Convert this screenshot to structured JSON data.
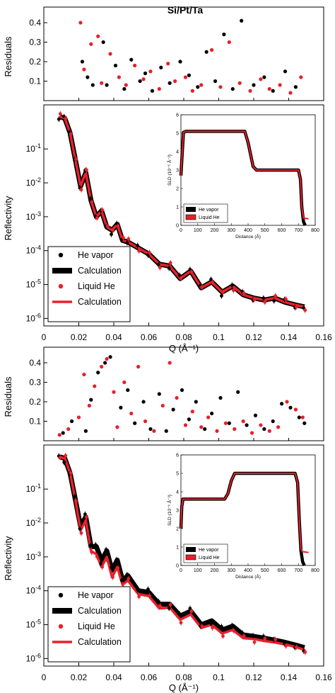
{
  "title": "Si/Pt/Ta",
  "colors": {
    "vapor": "#000000",
    "liquid": "#e8202a"
  },
  "x_tick_labels": [
    "0",
    "0.02",
    "0.04",
    "0.06",
    "0.08",
    "0.1",
    "0.12",
    "0.14",
    "0.16"
  ],
  "x_axis_label": "Q (Å⁻¹)",
  "residuals_label": "Residuals",
  "reflectivity_label": "Reflectivity",
  "residual_tick_labels": [
    "0.1",
    "0.2",
    "0.3",
    "0.4"
  ],
  "reflectivity_tick_labels": [
    "10-1",
    "10-2",
    "10-3",
    "10-4",
    "10-5",
    "10-6"
  ],
  "legend": [
    "He vapor",
    "Calculation",
    "Liquid He",
    "Calculation"
  ],
  "inset": {
    "ylabel": "SLD (10⁻⁶ Å⁻²)",
    "xlabel": "Distance (Å)",
    "y_tick_labels": [
      "0",
      "1",
      "2",
      "3",
      "4",
      "5",
      "6"
    ],
    "x_tick_labels": [
      "0",
      "100",
      "200",
      "300",
      "400",
      "500",
      "600",
      "700",
      "800"
    ],
    "legend": [
      "He vapor",
      "Liquid He"
    ]
  },
  "chart_data": [
    {
      "type": "scatter",
      "panel": "top-residuals",
      "ylabel": "Residuals",
      "xlim": [
        0,
        0.16
      ],
      "ylim": [
        0,
        0.48
      ],
      "series": [
        {
          "name": "He vapor",
          "x": [
            0.022,
            0.025,
            0.028,
            0.034,
            0.036,
            0.041,
            0.046,
            0.05,
            0.055,
            0.058,
            0.062,
            0.067,
            0.072,
            0.078,
            0.083,
            0.088,
            0.093,
            0.098,
            0.103,
            0.108,
            0.113,
            0.12,
            0.126,
            0.131,
            0.138,
            0.144
          ],
          "y": [
            0.2,
            0.12,
            0.08,
            0.3,
            0.08,
            0.18,
            0.06,
            0.21,
            0.1,
            0.14,
            0.05,
            0.17,
            0.09,
            0.2,
            0.13,
            0.07,
            0.25,
            0.1,
            0.34,
            0.06,
            0.41,
            0.08,
            0.12,
            0.05,
            0.15,
            0.07
          ]
        },
        {
          "name": "Liquid He",
          "x": [
            0.021,
            0.023,
            0.027,
            0.031,
            0.033,
            0.038,
            0.043,
            0.047,
            0.052,
            0.057,
            0.061,
            0.066,
            0.071,
            0.075,
            0.081,
            0.085,
            0.09,
            0.096,
            0.101,
            0.106,
            0.112,
            0.118,
            0.124,
            0.129,
            0.135,
            0.141,
            0.147
          ],
          "y": [
            0.4,
            0.16,
            0.29,
            0.33,
            0.09,
            0.24,
            0.12,
            0.08,
            0.18,
            0.11,
            0.15,
            0.06,
            0.19,
            0.1,
            0.12,
            0.05,
            0.08,
            0.26,
            0.07,
            0.3,
            0.09,
            0.05,
            0.11,
            0.06,
            0.08,
            0.04,
            0.12
          ]
        }
      ]
    },
    {
      "type": "line",
      "panel": "top-reflectivity",
      "ylabel": "Reflectivity",
      "xlabel": "Q (Å⁻¹)",
      "xlim": [
        0,
        0.16
      ],
      "yscale": "log",
      "ylim": [
        6e-07,
        2
      ],
      "series": [
        {
          "name": "He vapor",
          "x": [
            0.009,
            0.012,
            0.015,
            0.018,
            0.021,
            0.024,
            0.027,
            0.03,
            0.033,
            0.036,
            0.039,
            0.042,
            0.045,
            0.048,
            0.054,
            0.06,
            0.066,
            0.072,
            0.078,
            0.084,
            0.09,
            0.096,
            0.102,
            0.108,
            0.114,
            0.12,
            0.126,
            0.132,
            0.138,
            0.144,
            0.149
          ],
          "y": [
            0.9,
            0.8,
            0.3,
            0.05,
            0.008,
            0.02,
            0.003,
            0.001,
            0.0015,
            0.0005,
            0.0004,
            0.0006,
            0.0002,
            0.00018,
            0.00012,
            8e-05,
            4e-05,
            3.5e-05,
            1.5e-05,
            2.5e-05,
            8e-06,
            1.2e-05,
            6e-06,
            9e-06,
            5e-06,
            4e-06,
            3.5e-06,
            4e-06,
            3e-06,
            2.5e-06,
            2.2e-06
          ]
        },
        {
          "name": "Liquid He",
          "x": [
            0.009,
            0.012,
            0.015,
            0.018,
            0.021,
            0.024,
            0.027,
            0.03,
            0.033,
            0.036,
            0.039,
            0.042,
            0.045,
            0.048,
            0.054,
            0.06,
            0.066,
            0.072,
            0.078,
            0.084,
            0.09,
            0.096,
            0.102,
            0.108,
            0.114,
            0.12,
            0.126,
            0.132,
            0.138,
            0.144,
            0.149
          ],
          "y": [
            0.9,
            0.8,
            0.3,
            0.05,
            0.008,
            0.02,
            0.003,
            0.001,
            0.0015,
            0.0005,
            0.0004,
            0.0006,
            0.0002,
            0.00018,
            0.00012,
            8e-05,
            4e-05,
            3.5e-05,
            1.5e-05,
            2.5e-05,
            8e-06,
            1.2e-05,
            6e-06,
            9e-06,
            5e-06,
            4e-06,
            3.5e-06,
            4e-06,
            3e-06,
            2.5e-06,
            2.2e-06
          ]
        }
      ]
    },
    {
      "type": "line",
      "panel": "top-inset-sld",
      "xlabel": "Distance (Å)",
      "ylabel": "SLD (10⁻⁶ Å⁻²)",
      "xlim": [
        0,
        800
      ],
      "ylim": [
        0,
        6
      ],
      "series": [
        {
          "name": "He vapor",
          "x": [
            0,
            5,
            15,
            30,
            380,
            400,
            430,
            450,
            700,
            712,
            720,
            730,
            740
          ],
          "y": [
            2.7,
            3.5,
            5.05,
            5.1,
            5.1,
            4.5,
            3.2,
            3.0,
            3.0,
            2.5,
            1.0,
            0.2,
            0.0
          ]
        },
        {
          "name": "Liquid He",
          "x": [
            0,
            5,
            15,
            30,
            380,
            400,
            430,
            450,
            700,
            712,
            720,
            730,
            760
          ],
          "y": [
            2.7,
            3.5,
            5.05,
            5.1,
            5.1,
            4.5,
            3.2,
            3.0,
            3.0,
            2.5,
            1.0,
            0.4,
            0.35
          ]
        }
      ]
    },
    {
      "type": "scatter",
      "panel": "bottom-residuals",
      "ylabel": "Residuals",
      "xlim": [
        0,
        0.16
      ],
      "ylim": [
        0,
        0.48
      ],
      "series": [
        {
          "name": "He vapor",
          "x": [
            0.011,
            0.016,
            0.024,
            0.027,
            0.031,
            0.035,
            0.038,
            0.044,
            0.048,
            0.052,
            0.057,
            0.061,
            0.066,
            0.07,
            0.074,
            0.079,
            0.083,
            0.087,
            0.092,
            0.096,
            0.101,
            0.106,
            0.111,
            0.116,
            0.121,
            0.126,
            0.131,
            0.136,
            0.141,
            0.146,
            0.149
          ],
          "y": [
            0.04,
            0.1,
            0.05,
            0.21,
            0.35,
            0.4,
            0.43,
            0.17,
            0.26,
            0.09,
            0.2,
            0.06,
            0.24,
            0.05,
            0.16,
            0.26,
            0.11,
            0.2,
            0.06,
            0.14,
            0.22,
            0.09,
            0.25,
            0.08,
            0.13,
            0.06,
            0.1,
            0.19,
            0.17,
            0.12,
            0.09
          ]
        },
        {
          "name": "Liquid He",
          "x": [
            0.009,
            0.014,
            0.02,
            0.023,
            0.026,
            0.029,
            0.033,
            0.036,
            0.04,
            0.042,
            0.046,
            0.05,
            0.054,
            0.058,
            0.063,
            0.068,
            0.072,
            0.076,
            0.081,
            0.085,
            0.09,
            0.094,
            0.099,
            0.104,
            0.109,
            0.114,
            0.119,
            0.124,
            0.129,
            0.134,
            0.139,
            0.144,
            0.148
          ],
          "y": [
            0.03,
            0.06,
            0.12,
            0.34,
            0.18,
            0.28,
            0.38,
            0.42,
            0.25,
            0.07,
            0.3,
            0.14,
            0.38,
            0.1,
            0.05,
            0.18,
            0.4,
            0.22,
            0.08,
            0.15,
            0.07,
            0.12,
            0.05,
            0.09,
            0.06,
            0.1,
            0.04,
            0.08,
            0.05,
            0.07,
            0.2,
            0.16,
            0.12
          ]
        }
      ]
    },
    {
      "type": "line",
      "panel": "bottom-reflectivity",
      "ylabel": "Reflectivity",
      "xlabel": "Q (Å⁻¹)",
      "xlim": [
        0,
        0.16
      ],
      "yscale": "log",
      "ylim": [
        6e-07,
        2
      ],
      "series": [
        {
          "name": "He vapor",
          "x": [
            0.009,
            0.012,
            0.015,
            0.018,
            0.021,
            0.024,
            0.027,
            0.03,
            0.033,
            0.036,
            0.039,
            0.042,
            0.045,
            0.048,
            0.054,
            0.06,
            0.066,
            0.072,
            0.078,
            0.084,
            0.09,
            0.096,
            0.102,
            0.108,
            0.114,
            0.12,
            0.126,
            0.132,
            0.138,
            0.144,
            0.149
          ],
          "y": [
            0.9,
            0.8,
            0.3,
            0.05,
            0.008,
            0.015,
            0.002,
            0.002,
            0.0008,
            0.0015,
            0.0004,
            0.0008,
            0.0002,
            0.00028,
            0.0001,
            9e-05,
            4e-05,
            4e-05,
            1.8e-05,
            2.5e-05,
            1e-05,
            1.3e-05,
            7e-06,
            9e-06,
            5e-06,
            4.5e-06,
            4e-06,
            3.5e-06,
            3e-06,
            2.5e-06,
            2.1e-06
          ]
        },
        {
          "name": "Liquid He",
          "x": [
            0.009,
            0.012,
            0.015,
            0.018,
            0.021,
            0.024,
            0.027,
            0.03,
            0.033,
            0.036,
            0.039,
            0.042,
            0.045,
            0.048,
            0.054,
            0.06,
            0.066,
            0.072,
            0.078,
            0.084,
            0.09,
            0.096,
            0.102,
            0.108,
            0.114,
            0.12,
            0.126,
            0.132,
            0.138,
            0.144,
            0.149
          ],
          "y": [
            0.9,
            0.8,
            0.3,
            0.05,
            0.006,
            0.012,
            0.0015,
            0.0012,
            0.0005,
            0.001,
            0.00025,
            0.0005,
            0.00015,
            0.0002,
            8e-05,
            7e-05,
            3e-05,
            3.2e-05,
            1.4e-05,
            2e-05,
            8e-06,
            1e-05,
            5.5e-06,
            7e-06,
            4e-06,
            3.8e-06,
            3.3e-06,
            3e-06,
            2.6e-06,
            2.2e-06,
            1.8e-06
          ]
        }
      ]
    },
    {
      "type": "line",
      "panel": "bottom-inset-sld",
      "xlabel": "Distance (Å)",
      "ylabel": "SLD (10⁻⁶ Å⁻²)",
      "xlim": [
        0,
        800
      ],
      "ylim": [
        0,
        6
      ],
      "series": [
        {
          "name": "He vapor",
          "x": [
            0,
            5,
            12,
            260,
            280,
            300,
            320,
            680,
            695,
            705,
            715,
            725,
            735
          ],
          "y": [
            2.0,
            3.2,
            3.6,
            3.6,
            3.9,
            4.6,
            5.0,
            5.0,
            4.5,
            2.5,
            0.8,
            0.2,
            0.0
          ]
        },
        {
          "name": "Liquid He",
          "x": [
            0,
            5,
            12,
            260,
            280,
            300,
            320,
            680,
            695,
            705,
            715,
            725,
            760
          ],
          "y": [
            2.0,
            3.2,
            3.6,
            3.6,
            3.9,
            4.6,
            5.0,
            5.0,
            4.5,
            2.5,
            0.9,
            0.75,
            0.7
          ]
        }
      ]
    }
  ]
}
